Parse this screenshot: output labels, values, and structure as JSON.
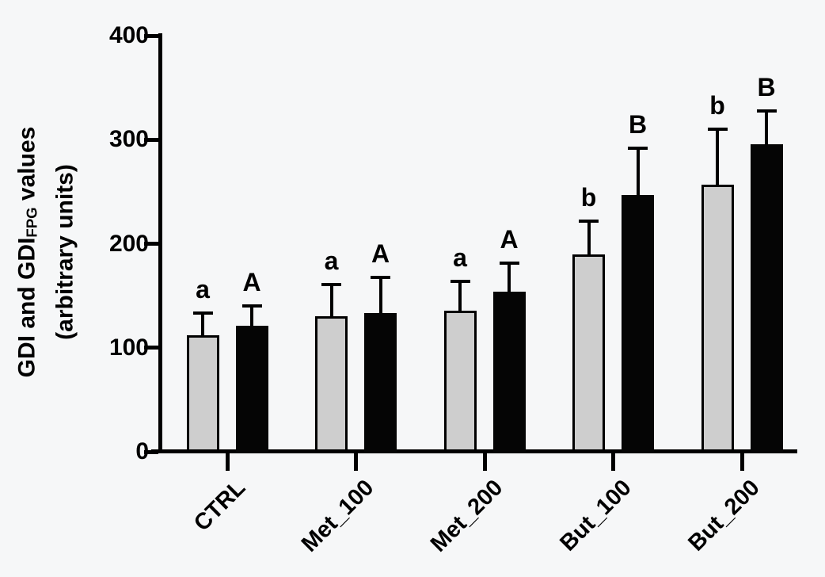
{
  "figure": {
    "background_color": "#f6f7f8",
    "bar_fill_gray": "#cecece",
    "bar_fill_black": "#050505",
    "axis_color": "#000000"
  },
  "y_axis": {
    "label_prefix": "GDI and GDI",
    "label_subscript": "FPG",
    "label_suffix": " values",
    "label_line2": "(arbitrary units)"
  },
  "chart_data": {
    "type": "bar",
    "title": "",
    "categories": [
      "CTRL",
      "Met_100",
      "Met_200",
      "But_100",
      "But_200"
    ],
    "series": [
      {
        "name": "GDI",
        "color": "#cecece",
        "values": [
          112,
          130,
          136,
          190,
          257
        ],
        "errors_up": [
          23,
          32,
          29,
          33,
          55
        ],
        "sig_letters": [
          "a",
          "a",
          "a",
          "b",
          "b"
        ]
      },
      {
        "name": "GDI_FPG",
        "color": "#050505",
        "values": [
          121,
          133,
          154,
          247,
          296
        ],
        "errors_up": [
          21,
          36,
          29,
          46,
          33
        ],
        "sig_letters": [
          "A",
          "A",
          "A",
          "B",
          "B"
        ]
      }
    ],
    "ylabel_line1": "GDI and GDI_FPG values",
    "ylabel_line2": "(arbitrary units)",
    "xlabel": "",
    "ylim": [
      0,
      400
    ],
    "yticks": [
      0,
      100,
      200,
      300,
      400
    ],
    "grid": false,
    "legend": "none",
    "error_bars": "upper, capped"
  }
}
